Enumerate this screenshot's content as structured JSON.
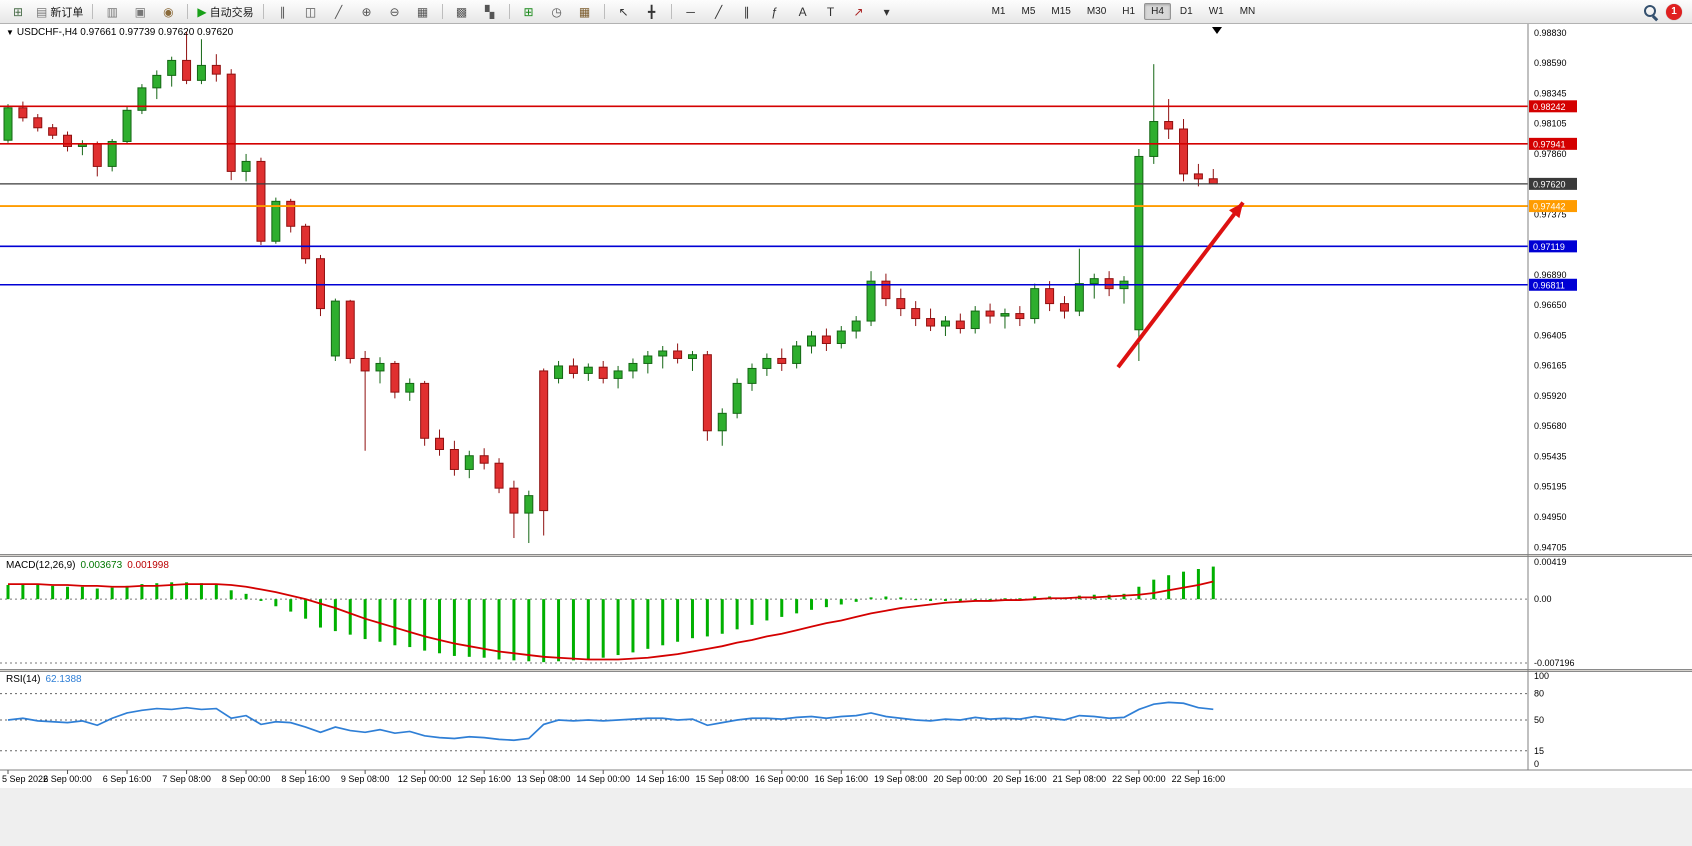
{
  "toolbar": {
    "groups": [
      {
        "items": [
          {
            "name": "new-chart-button",
            "glyph": "⊞",
            "color": "#4a6d4a"
          },
          {
            "name": "new-order-button",
            "glyph": "▤",
            "color": "#777777",
            "label": "新订单"
          }
        ]
      },
      {
        "items": [
          {
            "name": "profiles-button",
            "glyph": "▥",
            "color": "#777777"
          },
          {
            "name": "print-button",
            "glyph": "▣",
            "color": "#777777"
          },
          {
            "name": "alerts-button",
            "glyph": "◉",
            "color": "#8a6a3a"
          }
        ]
      },
      {
        "items": [
          {
            "name": "autotrade-button",
            "glyph": "▶",
            "color": "#18a018",
            "label": "自动交易"
          }
        ]
      },
      {
        "items": [
          {
            "name": "bar-chart-button",
            "glyph": "∥",
            "color": "#555555"
          },
          {
            "name": "candlestick-chart-button",
            "glyph": "◫",
            "color": "#555555"
          },
          {
            "name": "line-chart-button",
            "glyph": "╱",
            "color": "#555555"
          },
          {
            "name": "zoom-in-button",
            "glyph": "⊕",
            "color": "#555555"
          },
          {
            "name": "zoom-out-button",
            "glyph": "⊖",
            "color": "#555555"
          },
          {
            "name": "tile-windows-button",
            "glyph": "▦",
            "color": "#555555"
          }
        ]
      },
      {
        "items": [
          {
            "name": "cascade-windows-button",
            "glyph": "▩",
            "color": "#555555"
          },
          {
            "name": "arrange-windows-button",
            "glyph": "▚",
            "color": "#555555"
          }
        ]
      },
      {
        "items": [
          {
            "name": "add-indicator-button",
            "glyph": "⊞",
            "color": "#1a8a1a"
          },
          {
            "name": "period-clock-button",
            "glyph": "◷",
            "color": "#555555"
          },
          {
            "name": "templates-button",
            "glyph": "▦",
            "color": "#7a5a2a"
          }
        ]
      },
      {
        "items": [
          {
            "name": "cursor-button",
            "glyph": "↖",
            "color": "#333333"
          },
          {
            "name": "crosshair-button",
            "glyph": "╋",
            "color": "#333333"
          }
        ]
      },
      {
        "items": [
          {
            "name": "horizontal-line-button",
            "glyph": "─",
            "color": "#333333"
          },
          {
            "name": "trendline-button",
            "glyph": "╱",
            "color": "#333333"
          },
          {
            "name": "channel-button",
            "glyph": "∥",
            "color": "#333333"
          },
          {
            "name": "fibonacci-button",
            "glyph": "ƒ",
            "color": "#333333"
          },
          {
            "name": "text-button",
            "glyph": "A",
            "color": "#333333"
          },
          {
            "name": "label-button",
            "glyph": "T",
            "color": "#333333"
          },
          {
            "name": "arrow-object-button",
            "glyph": "↗",
            "color": "#aa2222"
          },
          {
            "name": "objects-dropdown",
            "glyph": "▾",
            "color": "#333333"
          }
        ]
      }
    ],
    "timeframes": {
      "items": [
        "M1",
        "M5",
        "M15",
        "M30",
        "H1",
        "H4",
        "D1",
        "W1",
        "MN"
      ],
      "active": "H4"
    },
    "right_items": [
      {
        "name": "search-icon",
        "kind": "magnifier"
      },
      {
        "name": "notification-badge",
        "kind": "badge",
        "label": "1",
        "color": "#e02020"
      }
    ]
  },
  "chart_data": [
    {
      "type": "candlestick",
      "title": "USDCHF-,H4 0.97661 0.97739 0.97620 0.97620",
      "symbol": "USDCHF-",
      "period": "H4",
      "ohlc_current": {
        "open": 0.97661,
        "high": 0.97739,
        "low": 0.9762,
        "close": 0.9762
      },
      "y_range": [
        0.9466,
        0.98886
      ],
      "y_ticks": [
        0.9883,
        0.9859,
        0.98345,
        0.98105,
        0.9786,
        0.9762,
        0.97375,
        0.97135,
        0.9689,
        0.9665,
        0.96405,
        0.96165,
        0.9592,
        0.9568,
        0.95435,
        0.95195,
        0.9495,
        0.94705
      ],
      "x_label_step": 4,
      "x_labels": [
        "5 Sep 2022",
        "6 Sep 00:00",
        "6 Sep 16:00",
        "7 Sep 08:00",
        "8 Sep 00:00",
        "8 Sep 16:00",
        "9 Sep 08:00",
        "12 Sep 00:00",
        "12 Sep 16:00",
        "13 Sep 08:00",
        "14 Sep 00:00",
        "14 Sep 16:00",
        "15 Sep 08:00",
        "16 Sep 00:00",
        "16 Sep 16:00",
        "19 Sep 08:00",
        "20 Sep 00:00",
        "20 Sep 16:00",
        "21 Sep 08:00",
        "22 Sep 00:00",
        "22 Sep 16:00"
      ],
      "candles": [
        [
          0.9797,
          0.9826,
          0.9795,
          0.9823
        ],
        [
          0.9823,
          0.9828,
          0.9812,
          0.9815
        ],
        [
          0.9815,
          0.9818,
          0.9804,
          0.9807
        ],
        [
          0.9807,
          0.981,
          0.9798,
          0.9801
        ],
        [
          0.9801,
          0.9804,
          0.9788,
          0.9792
        ],
        [
          0.9792,
          0.9797,
          0.9785,
          0.9794
        ],
        [
          0.9794,
          0.9796,
          0.9768,
          0.9776
        ],
        [
          0.9776,
          0.9798,
          0.9772,
          0.9796
        ],
        [
          0.9796,
          0.9824,
          0.9794,
          0.9821
        ],
        [
          0.9821,
          0.9842,
          0.9818,
          0.9839
        ],
        [
          0.9839,
          0.9853,
          0.983,
          0.9849
        ],
        [
          0.9849,
          0.9864,
          0.984,
          0.9861
        ],
        [
          0.9861,
          0.9884,
          0.9842,
          0.9845
        ],
        [
          0.9845,
          0.9878,
          0.9842,
          0.9857
        ],
        [
          0.9857,
          0.9866,
          0.9844,
          0.985
        ],
        [
          0.985,
          0.9854,
          0.9765,
          0.9772
        ],
        [
          0.9772,
          0.9786,
          0.9764,
          0.978
        ],
        [
          0.978,
          0.9783,
          0.9713,
          0.9716
        ],
        [
          0.9716,
          0.9751,
          0.9714,
          0.9748
        ],
        [
          0.9748,
          0.975,
          0.9723,
          0.9728
        ],
        [
          0.9728,
          0.973,
          0.9698,
          0.9702
        ],
        [
          0.9702,
          0.9705,
          0.9656,
          0.9662
        ],
        [
          0.9624,
          0.967,
          0.962,
          0.9668
        ],
        [
          0.9668,
          0.9669,
          0.9618,
          0.9622
        ],
        [
          0.9622,
          0.9628,
          0.9548,
          0.9612
        ],
        [
          0.9612,
          0.9623,
          0.9602,
          0.9618
        ],
        [
          0.9618,
          0.962,
          0.959,
          0.9595
        ],
        [
          0.9595,
          0.9606,
          0.9588,
          0.9602
        ],
        [
          0.9602,
          0.9604,
          0.9552,
          0.9558
        ],
        [
          0.9558,
          0.9565,
          0.9544,
          0.9549
        ],
        [
          0.9549,
          0.9556,
          0.9528,
          0.9533
        ],
        [
          0.9533,
          0.9548,
          0.9526,
          0.9544
        ],
        [
          0.9544,
          0.955,
          0.9533,
          0.9538
        ],
        [
          0.9538,
          0.9542,
          0.9514,
          0.9518
        ],
        [
          0.9518,
          0.9524,
          0.9478,
          0.9498
        ],
        [
          0.9498,
          0.9516,
          0.9474,
          0.9512
        ],
        [
          0.9612,
          0.9614,
          0.948,
          0.95
        ],
        [
          0.9606,
          0.962,
          0.9602,
          0.9616
        ],
        [
          0.9616,
          0.9622,
          0.9606,
          0.961
        ],
        [
          0.961,
          0.9618,
          0.9604,
          0.9615
        ],
        [
          0.9615,
          0.962,
          0.9602,
          0.9606
        ],
        [
          0.9606,
          0.9616,
          0.9598,
          0.9612
        ],
        [
          0.9612,
          0.9622,
          0.9606,
          0.9618
        ],
        [
          0.9618,
          0.9628,
          0.961,
          0.9624
        ],
        [
          0.9624,
          0.9632,
          0.9614,
          0.9628
        ],
        [
          0.9628,
          0.9634,
          0.9618,
          0.9622
        ],
        [
          0.9622,
          0.9628,
          0.9612,
          0.9625
        ],
        [
          0.9625,
          0.9628,
          0.9556,
          0.9564
        ],
        [
          0.9564,
          0.9582,
          0.9552,
          0.9578
        ],
        [
          0.9578,
          0.9606,
          0.9574,
          0.9602
        ],
        [
          0.9602,
          0.9618,
          0.9596,
          0.9614
        ],
        [
          0.9614,
          0.9626,
          0.9608,
          0.9622
        ],
        [
          0.9622,
          0.963,
          0.9612,
          0.9618
        ],
        [
          0.9618,
          0.9636,
          0.9614,
          0.9632
        ],
        [
          0.9632,
          0.9644,
          0.9626,
          0.964
        ],
        [
          0.964,
          0.9646,
          0.9628,
          0.9634
        ],
        [
          0.9634,
          0.9648,
          0.963,
          0.9644
        ],
        [
          0.9644,
          0.9656,
          0.9638,
          0.9652
        ],
        [
          0.9652,
          0.9692,
          0.9648,
          0.9684
        ],
        [
          0.9684,
          0.969,
          0.9664,
          0.967
        ],
        [
          0.967,
          0.9678,
          0.9656,
          0.9662
        ],
        [
          0.9662,
          0.9668,
          0.9648,
          0.9654
        ],
        [
          0.9654,
          0.9662,
          0.9644,
          0.9648
        ],
        [
          0.9648,
          0.9656,
          0.964,
          0.9652
        ],
        [
          0.9652,
          0.9658,
          0.9642,
          0.9646
        ],
        [
          0.9646,
          0.9664,
          0.9642,
          0.966
        ],
        [
          0.966,
          0.9666,
          0.965,
          0.9656
        ],
        [
          0.9656,
          0.9662,
          0.9646,
          0.9658
        ],
        [
          0.9658,
          0.9664,
          0.9648,
          0.9654
        ],
        [
          0.9654,
          0.9682,
          0.965,
          0.9678
        ],
        [
          0.9678,
          0.9684,
          0.966,
          0.9666
        ],
        [
          0.9666,
          0.9672,
          0.9654,
          0.966
        ],
        [
          0.966,
          0.971,
          0.9656,
          0.9682
        ],
        [
          0.9682,
          0.969,
          0.967,
          0.9686
        ],
        [
          0.9686,
          0.9692,
          0.9672,
          0.9678
        ],
        [
          0.9678,
          0.9688,
          0.9666,
          0.9684
        ],
        [
          0.9645,
          0.979,
          0.962,
          0.9784
        ],
        [
          0.9784,
          0.9858,
          0.9778,
          0.9812
        ],
        [
          0.9812,
          0.983,
          0.9798,
          0.9806
        ],
        [
          0.9806,
          0.9814,
          0.9764,
          0.977
        ],
        [
          0.977,
          0.9778,
          0.976,
          0.9766
        ],
        [
          0.97661,
          0.97739,
          0.9762,
          0.9762
        ]
      ],
      "levels": [
        {
          "name": "resistance-line-1",
          "value": 0.98242,
          "label": "0.98242",
          "color": "#d40000",
          "width": 1.6
        },
        {
          "name": "resistance-line-2",
          "value": 0.97941,
          "label": "0.97941",
          "color": "#d40000",
          "width": 1.6
        },
        {
          "name": "current-price-line",
          "value": 0.9762,
          "label": "0.97620",
          "color": "#3a3a3a",
          "width": 1.2
        },
        {
          "name": "support-line-orange",
          "value": 0.97442,
          "label": "0.97442",
          "color": "#ff9c00",
          "width": 1.8
        },
        {
          "name": "support-line-blue-1",
          "value": 0.97119,
          "label": "0.97119",
          "color": "#0000d4",
          "width": 1.6
        },
        {
          "name": "support-line-blue-2",
          "value": 0.96811,
          "label": "0.96811",
          "color": "#0000d4",
          "width": 1.6
        }
      ],
      "annotation_arrow": {
        "from": {
          "index": 74.6,
          "price": 0.9615
        },
        "to": {
          "index": 83.0,
          "price": 0.9747
        },
        "color": "#dd1111"
      },
      "colors": {
        "up": "#2eae2e",
        "up_border": "#146614",
        "down": "#e03030",
        "down_border": "#8f1010",
        "background": "#ffffff"
      }
    },
    {
      "type": "bar",
      "name": "MACD",
      "title": "MACD(12,26,9)",
      "main_value_text": "0.003673",
      "signal_value_text": "0.001998",
      "main_value": 0.003673,
      "signal_value": 0.001998,
      "y_ticks": [
        {
          "v": 0.00419,
          "label": "0.00419"
        },
        {
          "v": 0,
          "label": "0.00"
        },
        {
          "v": -0.007196,
          "label": "-0.007196"
        }
      ],
      "y_max": 0.00419,
      "y_min": -0.007196,
      "histogram": [
        0.0016,
        0.0017,
        0.0016,
        0.0015,
        0.0014,
        0.0014,
        0.0012,
        0.0013,
        0.0015,
        0.0017,
        0.0018,
        0.0019,
        0.0019,
        0.0018,
        0.0016,
        0.001,
        0.0006,
        -0.0002,
        -0.0008,
        -0.0014,
        -0.0022,
        -0.0032,
        -0.0036,
        -0.004,
        -0.0045,
        -0.0048,
        -0.0052,
        -0.0054,
        -0.0058,
        -0.0061,
        -0.0064,
        -0.0065,
        -0.0066,
        -0.0068,
        -0.0069,
        -0.007,
        -0.0071,
        -0.007,
        -0.0069,
        -0.0068,
        -0.0066,
        -0.0063,
        -0.006,
        -0.0056,
        -0.0052,
        -0.0048,
        -0.0044,
        -0.0042,
        -0.0039,
        -0.0034,
        -0.0029,
        -0.0024,
        -0.002,
        -0.0016,
        -0.0012,
        -0.0009,
        -0.0006,
        -0.0003,
        0.0002,
        0.0003,
        0.0002,
        0.0,
        -0.0002,
        -0.0002,
        -0.0003,
        -0.0001,
        0.0,
        0.0001,
        0.0001,
        0.0003,
        0.0003,
        0.0002,
        0.0004,
        0.0005,
        0.0005,
        0.0006,
        0.0014,
        0.0022,
        0.0027,
        0.0031,
        0.0034,
        0.003673
      ],
      "signal_line": [
        0.0017,
        0.0017,
        0.0017,
        0.0016,
        0.0016,
        0.0015,
        0.0015,
        0.0014,
        0.0014,
        0.0015,
        0.0015,
        0.0016,
        0.0017,
        0.0017,
        0.0017,
        0.0016,
        0.0014,
        0.0011,
        0.0008,
        0.0004,
        0.0,
        -0.0005,
        -0.001,
        -0.0016,
        -0.0022,
        -0.0027,
        -0.0032,
        -0.0037,
        -0.0042,
        -0.0046,
        -0.005,
        -0.0053,
        -0.0056,
        -0.0059,
        -0.0061,
        -0.0063,
        -0.0065,
        -0.0066,
        -0.0067,
        -0.0068,
        -0.0068,
        -0.0068,
        -0.0067,
        -0.0066,
        -0.0064,
        -0.0062,
        -0.0059,
        -0.0056,
        -0.0053,
        -0.0049,
        -0.0046,
        -0.0042,
        -0.0039,
        -0.0035,
        -0.0031,
        -0.0027,
        -0.0024,
        -0.002,
        -0.0016,
        -0.0013,
        -0.001,
        -0.0008,
        -0.0006,
        -0.0004,
        -0.0003,
        -0.0002,
        -0.0002,
        -0.0001,
        -0.0001,
        0.0,
        0.0001,
        0.0001,
        0.0002,
        0.0002,
        0.0003,
        0.0004,
        0.0005,
        0.0007,
        0.001,
        0.0013,
        0.0016,
        0.001998
      ],
      "colors": {
        "histogram": "#00b000",
        "signal": "#d40000"
      }
    },
    {
      "type": "line",
      "name": "RSI",
      "title": "RSI(14)",
      "value_text": "62.1388",
      "value": 62.1388,
      "y_ticks": [
        {
          "v": 100,
          "label": "100"
        },
        {
          "v": 80,
          "label": "80"
        },
        {
          "v": 50,
          "label": "50"
        },
        {
          "v": 15,
          "label": "15"
        },
        {
          "v": 0,
          "label": "0"
        }
      ],
      "levels": [
        80,
        50,
        15
      ],
      "values": [
        50,
        52,
        49,
        48,
        47,
        49,
        44,
        52,
        58,
        61,
        63,
        62,
        64,
        62,
        63,
        52,
        55,
        45,
        48,
        47,
        42,
        36,
        42,
        38,
        36,
        39,
        35,
        37,
        32,
        30,
        29,
        31,
        30,
        28,
        27,
        29,
        45,
        50,
        49,
        50,
        49,
        50,
        51,
        52,
        52,
        50,
        51,
        44,
        47,
        50,
        52,
        52,
        51,
        53,
        54,
        52,
        54,
        55,
        58,
        54,
        52,
        50,
        49,
        51,
        50,
        53,
        51,
        52,
        51,
        54,
        52,
        50,
        55,
        54,
        52,
        53,
        62,
        68,
        70,
        69,
        64,
        62.1388
      ],
      "color": "#2f7fd6"
    }
  ]
}
